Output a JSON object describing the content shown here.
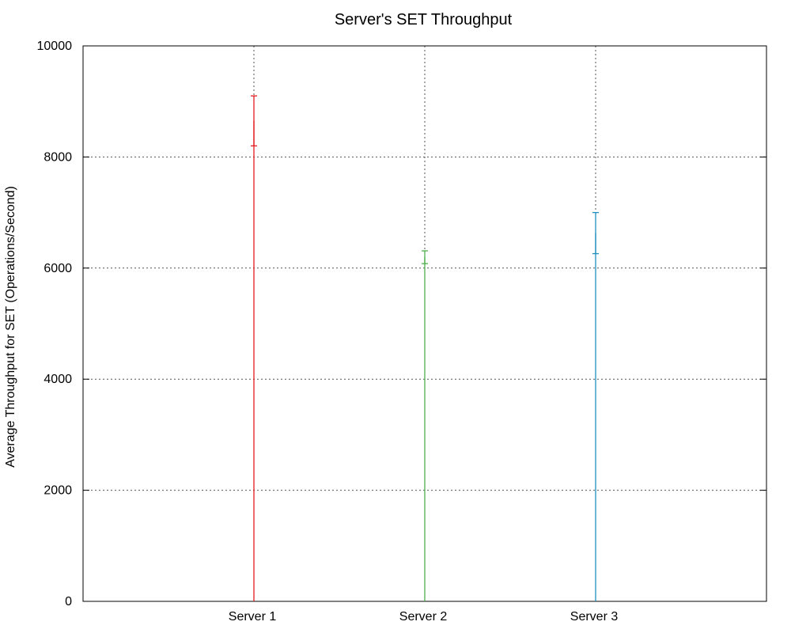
{
  "chart_data": {
    "type": "bar",
    "title": "Server's SET Throughput",
    "xlabel": "",
    "ylabel": "Average Throughput for SET (Operations/Second)",
    "ylim": [
      0,
      10000
    ],
    "yticks": [
      0,
      2000,
      4000,
      6000,
      8000,
      10000
    ],
    "grid": true,
    "legend": "none",
    "categories": [
      "Server 1",
      "Server 2",
      "Server 3"
    ],
    "series": [
      {
        "category": "Server 1",
        "value": 8650,
        "error_low": 8200,
        "error_high": 9100,
        "color": "#e41a1c"
      },
      {
        "category": "Server 2",
        "value": 6200,
        "error_low": 6080,
        "error_high": 6310,
        "color": "#4daf4a"
      },
      {
        "category": "Server 3",
        "value": 6630,
        "error_low": 6260,
        "error_high": 7000,
        "color": "#1f8fbf"
      }
    ]
  }
}
